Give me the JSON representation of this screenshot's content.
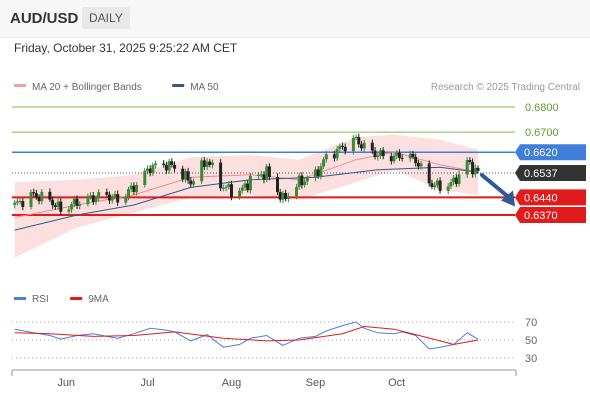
{
  "header": {
    "pair": "AUD/USD",
    "period": "DAILY"
  },
  "timestamp": "Friday, October 31, 2025 9:25:22 AM CET",
  "colors": {
    "candle_up": "#3a8a3a",
    "candle_down": "#222222",
    "resistance_line": "#3f7fd9",
    "support_line": "#e01b1b",
    "target_line": "#7dbb4a",
    "bollinger": "#fbd4d4",
    "ma20": "#f08a8a",
    "ma50": "#2f5a8a",
    "rsi": "#4a7fd8",
    "rsi_ma": "#e01b1b",
    "forecast_arrow": "#2f5a9a",
    "current_price": "#333333"
  },
  "chart_data": [
    {
      "type": "candlestick",
      "legend": [
        {
          "label": "MA 20 + Bollinger Bands",
          "color": "#f4a0a0"
        },
        {
          "label": "MA 50",
          "color": "#2f5a8a"
        }
      ],
      "credit": "Research © 2025 Trading Central",
      "x_ticks": [
        "Jun",
        "Jul",
        "Aug",
        "Sep",
        "Oct"
      ],
      "levels": [
        {
          "value": 0.68,
          "label": "0.6800",
          "kind": "target"
        },
        {
          "value": 0.67,
          "label": "0.6700",
          "kind": "target"
        },
        {
          "value": 0.662,
          "label": "0.6620",
          "kind": "resistance"
        },
        {
          "value": 0.6537,
          "label": "0.6537",
          "kind": "current"
        },
        {
          "value": 0.644,
          "label": "0.6440",
          "kind": "support"
        },
        {
          "value": 0.637,
          "label": "0.6370",
          "kind": "support"
        }
      ],
      "forecast": {
        "from": 0.6537,
        "to": 0.642,
        "direction": "down"
      },
      "close_path": [
        [
          "2025-05-13",
          0.641
        ],
        [
          "2025-05-20",
          0.645
        ],
        [
          "2025-05-26",
          0.643
        ],
        [
          "2025-05-30",
          0.639
        ],
        [
          "2025-06-05",
          0.642
        ],
        [
          "2025-06-11",
          0.644
        ],
        [
          "2025-06-16",
          0.645
        ],
        [
          "2025-06-20",
          0.643
        ],
        [
          "2025-06-26",
          0.648
        ],
        [
          "2025-07-02",
          0.656
        ],
        [
          "2025-07-08",
          0.657
        ],
        [
          "2025-07-11",
          0.656
        ],
        [
          "2025-07-17",
          0.65
        ],
        [
          "2025-07-23",
          0.659
        ],
        [
          "2025-07-29",
          0.648
        ],
        [
          "2025-08-04",
          0.646
        ],
        [
          "2025-08-08",
          0.651
        ],
        [
          "2025-08-14",
          0.654
        ],
        [
          "2025-08-20",
          0.643
        ],
        [
          "2025-08-26",
          0.65
        ],
        [
          "2025-09-01",
          0.653
        ],
        [
          "2025-09-05",
          0.66
        ],
        [
          "2025-09-11",
          0.664
        ],
        [
          "2025-09-16",
          0.667
        ],
        [
          "2025-09-19",
          0.664
        ],
        [
          "2025-09-24",
          0.661
        ],
        [
          "2025-09-30",
          0.66
        ],
        [
          "2025-10-03",
          0.661
        ],
        [
          "2025-10-08",
          0.659
        ],
        [
          "2025-10-13",
          0.65
        ],
        [
          "2025-10-17",
          0.648
        ],
        [
          "2025-10-22",
          0.65
        ],
        [
          "2025-10-27",
          0.658
        ],
        [
          "2025-10-31",
          0.6537
        ]
      ],
      "ma50_path": [
        [
          "2025-05-13",
          0.631
        ],
        [
          "2025-06-05",
          0.637
        ],
        [
          "2025-06-26",
          0.641
        ],
        [
          "2025-07-17",
          0.648
        ],
        [
          "2025-08-08",
          0.651
        ],
        [
          "2025-09-01",
          0.652
        ],
        [
          "2025-09-24",
          0.655
        ],
        [
          "2025-10-17",
          0.656
        ],
        [
          "2025-10-31",
          0.654
        ]
      ],
      "ma20_path": [
        [
          "2025-05-13",
          0.636
        ],
        [
          "2025-06-05",
          0.641
        ],
        [
          "2025-06-26",
          0.645
        ],
        [
          "2025-07-17",
          0.652
        ],
        [
          "2025-08-08",
          0.653
        ],
        [
          "2025-08-26",
          0.651
        ],
        [
          "2025-09-16",
          0.659
        ],
        [
          "2025-09-30",
          0.662
        ],
        [
          "2025-10-17",
          0.657
        ],
        [
          "2025-10-31",
          0.654
        ]
      ],
      "bollinger_upper_path": [
        [
          "2025-05-13",
          0.65
        ],
        [
          "2025-06-05",
          0.651
        ],
        [
          "2025-06-26",
          0.653
        ],
        [
          "2025-07-17",
          0.66
        ],
        [
          "2025-08-08",
          0.661
        ],
        [
          "2025-08-26",
          0.659
        ],
        [
          "2025-09-16",
          0.668
        ],
        [
          "2025-09-30",
          0.669
        ],
        [
          "2025-10-17",
          0.667
        ],
        [
          "2025-10-31",
          0.663
        ]
      ],
      "bollinger_lower_path": [
        [
          "2025-05-13",
          0.62
        ],
        [
          "2025-06-05",
          0.632
        ],
        [
          "2025-06-26",
          0.638
        ],
        [
          "2025-07-17",
          0.644
        ],
        [
          "2025-08-08",
          0.645
        ],
        [
          "2025-08-26",
          0.643
        ],
        [
          "2025-09-16",
          0.65
        ],
        [
          "2025-09-30",
          0.655
        ],
        [
          "2025-10-17",
          0.647
        ],
        [
          "2025-10-31",
          0.645
        ]
      ]
    },
    {
      "type": "line",
      "legend": [
        {
          "label": "RSI",
          "color": "#4a7fd8"
        },
        {
          "label": "9MA",
          "color": "#e01b1b"
        }
      ],
      "y_ticks": [
        70,
        50,
        30
      ],
      "ylim": [
        25,
        75
      ],
      "series": [
        {
          "name": "RSI",
          "points": [
            [
              "2025-05-13",
              62
            ],
            [
              "2025-05-20",
              58
            ],
            [
              "2025-05-26",
              55
            ],
            [
              "2025-05-30",
              51
            ],
            [
              "2025-06-05",
              55
            ],
            [
              "2025-06-11",
              57
            ],
            [
              "2025-06-16",
              54
            ],
            [
              "2025-06-20",
              52
            ],
            [
              "2025-06-26",
              57
            ],
            [
              "2025-07-02",
              63
            ],
            [
              "2025-07-08",
              61
            ],
            [
              "2025-07-11",
              59
            ],
            [
              "2025-07-17",
              49
            ],
            [
              "2025-07-23",
              56
            ],
            [
              "2025-07-29",
              42
            ],
            [
              "2025-08-04",
              45
            ],
            [
              "2025-08-08",
              52
            ],
            [
              "2025-08-14",
              55
            ],
            [
              "2025-08-20",
              44
            ],
            [
              "2025-08-26",
              52
            ],
            [
              "2025-09-01",
              54
            ],
            [
              "2025-09-05",
              60
            ],
            [
              "2025-09-11",
              66
            ],
            [
              "2025-09-16",
              70
            ],
            [
              "2025-09-19",
              63
            ],
            [
              "2025-09-24",
              58
            ],
            [
              "2025-09-30",
              57
            ],
            [
              "2025-10-03",
              59
            ],
            [
              "2025-10-08",
              55
            ],
            [
              "2025-10-13",
              40
            ],
            [
              "2025-10-17",
              42
            ],
            [
              "2025-10-22",
              45
            ],
            [
              "2025-10-27",
              58
            ],
            [
              "2025-10-31",
              51
            ]
          ]
        },
        {
          "name": "9MA",
          "points": [
            [
              "2025-05-13",
              58
            ],
            [
              "2025-05-26",
              57
            ],
            [
              "2025-06-11",
              54
            ],
            [
              "2025-06-26",
              55
            ],
            [
              "2025-07-11",
              59
            ],
            [
              "2025-07-29",
              52
            ],
            [
              "2025-08-14",
              49
            ],
            [
              "2025-08-26",
              50
            ],
            [
              "2025-09-11",
              57
            ],
            [
              "2025-09-19",
              65
            ],
            [
              "2025-09-30",
              62
            ],
            [
              "2025-10-08",
              56
            ],
            [
              "2025-10-17",
              49
            ],
            [
              "2025-10-22",
              45
            ],
            [
              "2025-10-31",
              50
            ]
          ]
        }
      ]
    }
  ]
}
